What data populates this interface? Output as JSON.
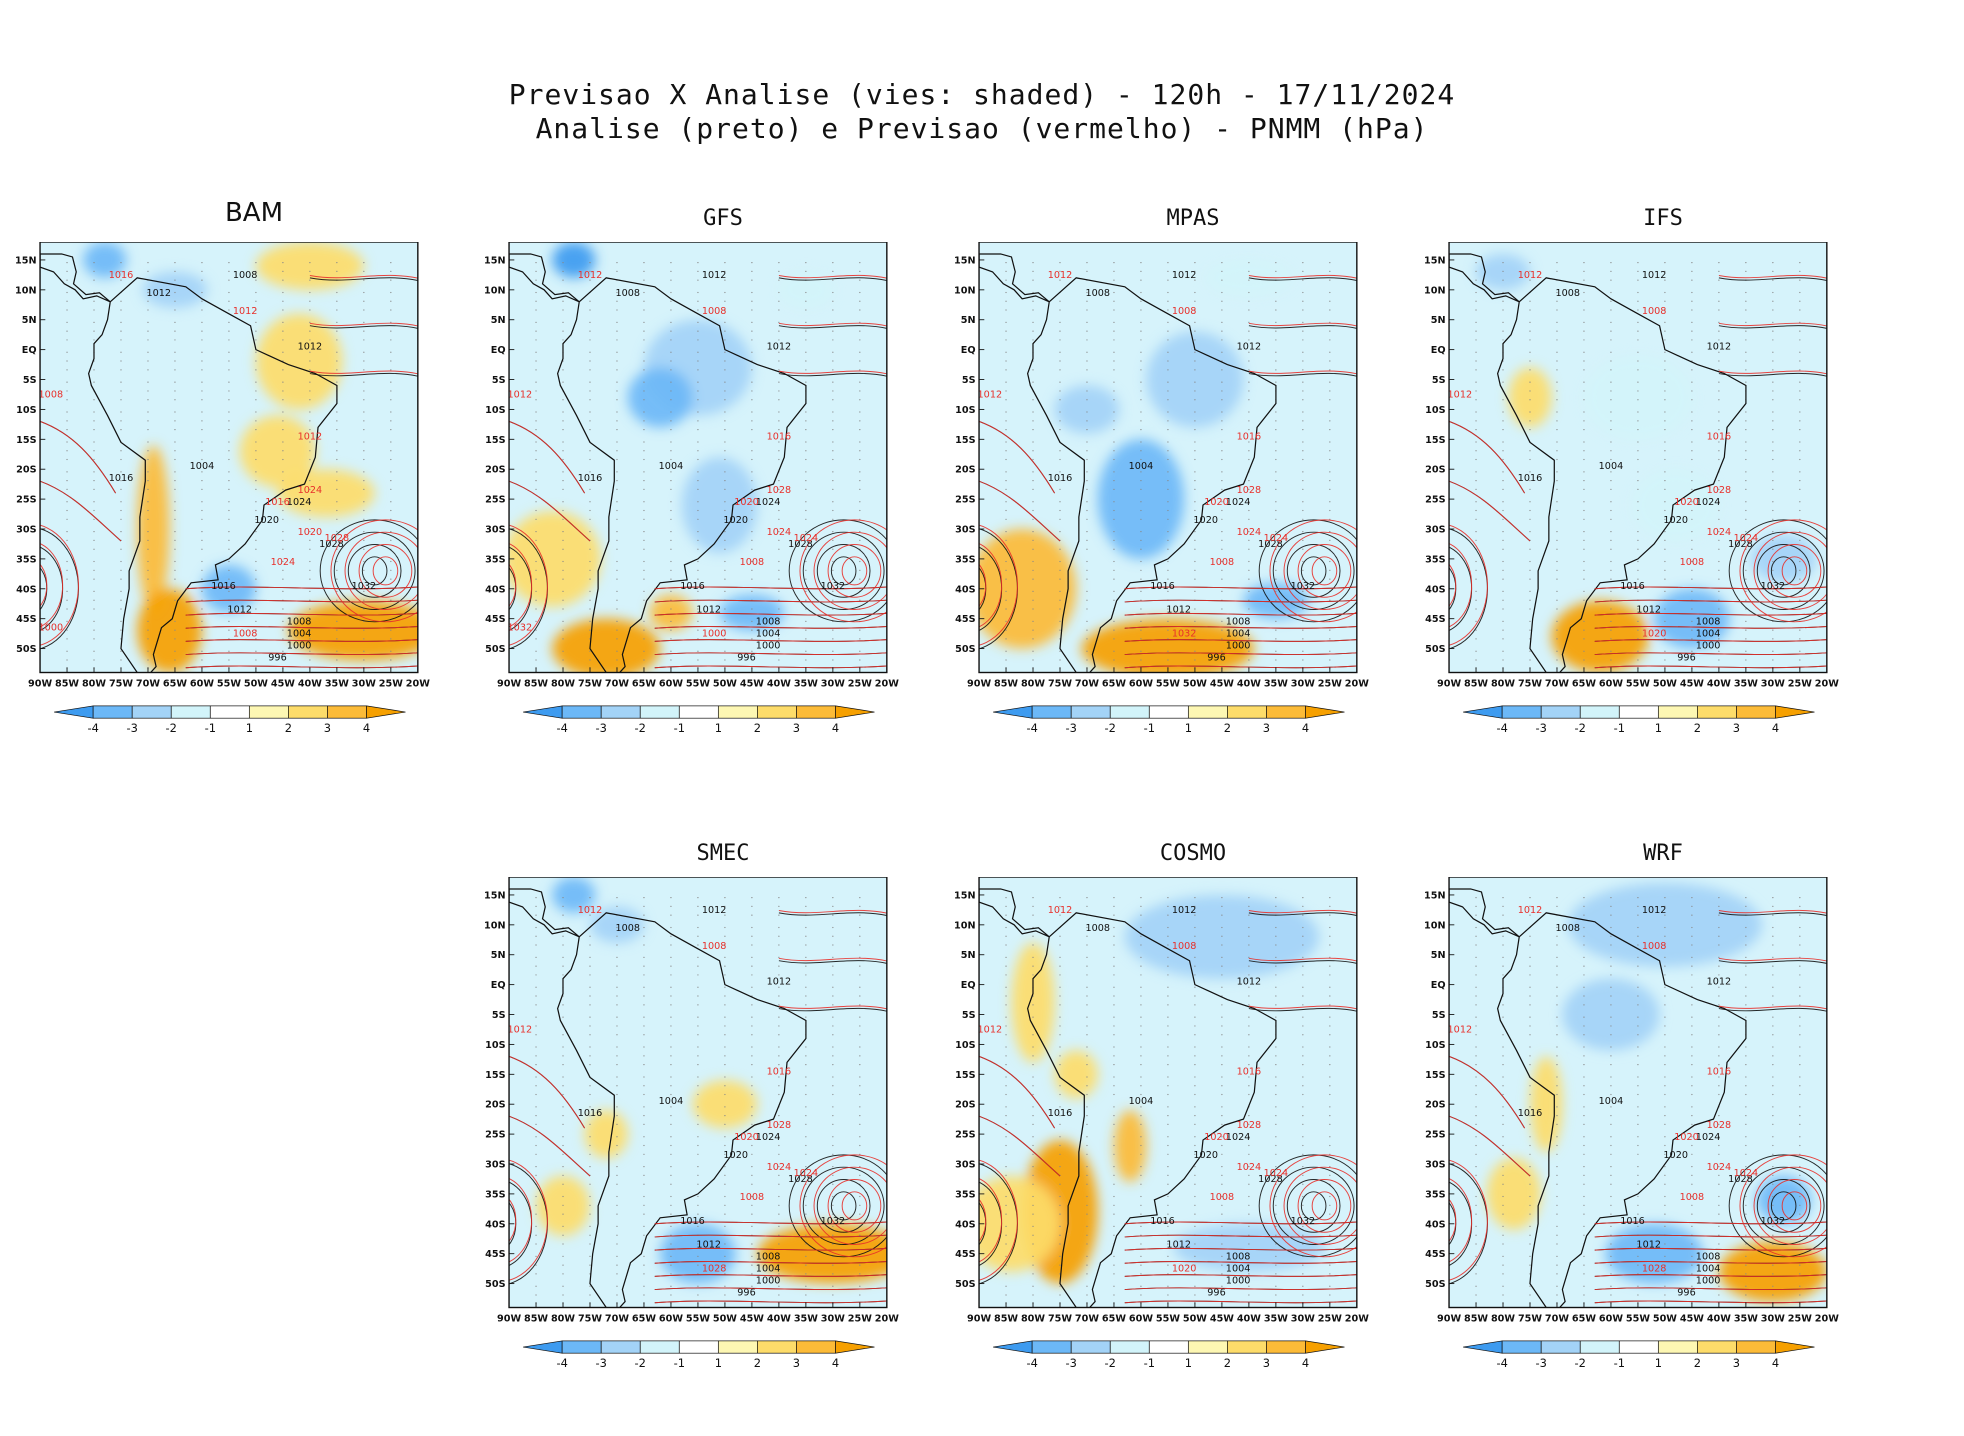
{
  "header": {
    "line1": "Previsao X Analise (vies: shaded) - 120h - 17/11/2024",
    "line2": "Analise (preto) e Previsao (vermelho) - PNMM (hPa)"
  },
  "axes": {
    "lat_labels": [
      "15N",
      "10N",
      "5N",
      "EQ",
      "5S",
      "10S",
      "15S",
      "20S",
      "25S",
      "30S",
      "35S",
      "40S",
      "45S",
      "50S"
    ],
    "lon_labels": [
      "90W",
      "85W",
      "80W",
      "75W",
      "70W",
      "65W",
      "60W",
      "55W",
      "50W",
      "45W",
      "40W",
      "35W",
      "30W",
      "25W",
      "20W"
    ]
  },
  "colorbar": {
    "labels": [
      "-4",
      "-3",
      "-2",
      "-1",
      "1",
      "2",
      "3",
      "4"
    ],
    "colors": [
      "#3d9bf0",
      "#6cb8f7",
      "#a3d3f7",
      "#d2f4fa",
      "#ffffff",
      "#fdf7b3",
      "#fddc6a",
      "#fcbb38",
      "#f6a000"
    ]
  },
  "colors": {
    "analysis": "#111111",
    "forecast": "#e8302b",
    "land_outline": "#111111"
  },
  "panels": [
    {
      "name": "BAM",
      "title": "BAM",
      "labels_black": [
        "1008",
        "1012",
        "1012",
        "1004",
        "1016",
        "1020",
        "1024",
        "1028",
        "1032",
        "1008",
        "1004",
        "1000",
        "996",
        "1012",
        "1016"
      ],
      "labels_red": [
        "1016",
        "1012",
        "1008",
        "1012",
        "1016",
        "1020",
        "1024",
        "1028",
        "1024",
        "1008",
        "1000"
      ]
    },
    {
      "name": "GFS",
      "title": "GFS",
      "labels_black": [
        "1012",
        "1008",
        "1012",
        "1004",
        "1016",
        "1020",
        "1024",
        "1028",
        "1032",
        "1008",
        "1004",
        "1000",
        "996",
        "1012",
        "1016"
      ],
      "labels_red": [
        "1012",
        "1008",
        "1012",
        "1016",
        "1020",
        "1024",
        "1028",
        "1024",
        "1008",
        "1000",
        "1032"
      ]
    },
    {
      "name": "MPAS",
      "title": "MPAS",
      "labels_black": [
        "1012",
        "1008",
        "1012",
        "1004",
        "1016",
        "1020",
        "1024",
        "1028",
        "1032",
        "1008",
        "1004",
        "1000",
        "996",
        "1012",
        "1016"
      ],
      "labels_red": [
        "1012",
        "1008",
        "1012",
        "1016",
        "1020",
        "1024",
        "1028",
        "1024",
        "1008",
        "1032"
      ]
    },
    {
      "name": "IFS",
      "title": "IFS",
      "labels_black": [
        "1012",
        "1008",
        "1012",
        "1004",
        "1016",
        "1020",
        "1024",
        "1028",
        "1032",
        "1008",
        "1004",
        "1000",
        "996",
        "1012",
        "1016"
      ],
      "labels_red": [
        "1012",
        "1008",
        "1012",
        "1016",
        "1020",
        "1024",
        "1028",
        "1024",
        "1008",
        "1020"
      ]
    },
    {
      "name": "SMEC",
      "title": "SMEC",
      "labels_black": [
        "1012",
        "1008",
        "1012",
        "1004",
        "1016",
        "1020",
        "1024",
        "1028",
        "1032",
        "1008",
        "1004",
        "1000",
        "996",
        "1012",
        "1016"
      ],
      "labels_red": [
        "1012",
        "1008",
        "1012",
        "1016",
        "1020",
        "1024",
        "1028",
        "1024",
        "1008",
        "1028"
      ]
    },
    {
      "name": "COSMO",
      "title": "COSMO",
      "labels_black": [
        "1012",
        "1008",
        "1012",
        "1004",
        "1016",
        "1020",
        "1024",
        "1028",
        "1032",
        "1008",
        "1004",
        "1000",
        "996",
        "1012",
        "1016"
      ],
      "labels_red": [
        "1012",
        "1008",
        "1012",
        "1016",
        "1020",
        "1024",
        "1028",
        "1024",
        "1008",
        "1020"
      ]
    },
    {
      "name": "WRF",
      "title": "WRF",
      "labels_black": [
        "1012",
        "1008",
        "1012",
        "1004",
        "1016",
        "1020",
        "1024",
        "1028",
        "1032",
        "1008",
        "1004",
        "1000",
        "996",
        "1012",
        "1016"
      ],
      "labels_red": [
        "1012",
        "1008",
        "1012",
        "1016",
        "1020",
        "1024",
        "1028",
        "1024",
        "1008",
        "1028"
      ]
    }
  ]
}
